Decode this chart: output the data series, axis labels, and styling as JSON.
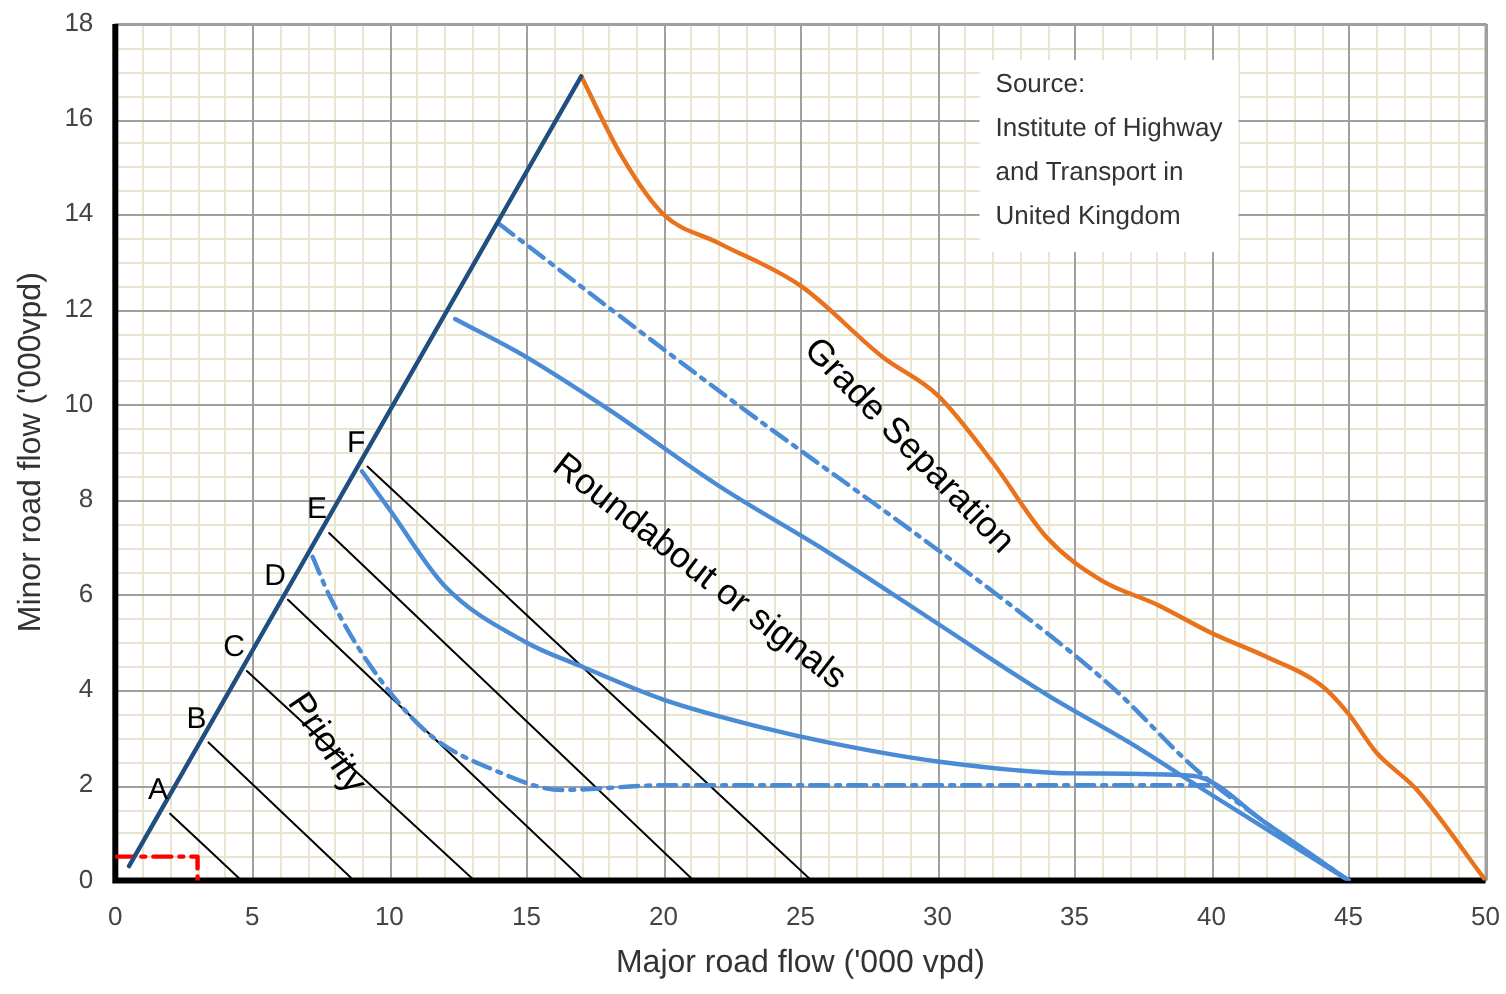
{
  "chart_data": {
    "type": "line",
    "xlabel": "Major road flow ('000 vpd)",
    "ylabel": "Minor road flow ('000vpd)",
    "xlim": [
      0,
      50
    ],
    "xticks": [
      0,
      5,
      10,
      15,
      20,
      25,
      30,
      35,
      40,
      45,
      50
    ],
    "ylim": [
      0,
      18
    ],
    "yticks": [
      0,
      2,
      4,
      6,
      8,
      10,
      12,
      14,
      16,
      18
    ],
    "grid": true,
    "legend": false,
    "marker": "none",
    "series": [
      {
        "color": "#1f4e7f",
        "x": [
          0.5,
          17
        ],
        "values": [
          0.3,
          16.9
        ]
      },
      {
        "color": "#e8731c",
        "x": [
          17,
          18.5,
          20,
          22,
          25,
          28,
          30,
          32,
          34,
          36,
          38,
          40,
          42,
          44,
          45,
          46,
          47.5,
          50
        ],
        "values": [
          16.9,
          15.2,
          14,
          13.4,
          12.5,
          11,
          10.2,
          8.8,
          7.2,
          6.3,
          5.8,
          5.2,
          4.7,
          4.1,
          3.5,
          2.7,
          1.9,
          0
        ]
      },
      {
        "color": "#4a8bd6",
        "line_style": "dashed",
        "x": [
          14,
          22,
          31.5,
          36.3,
          39.5,
          42,
          45
        ],
        "values": [
          13.8,
          10.3,
          6.3,
          4.1,
          2.3,
          1.2,
          0
        ]
      },
      {
        "color": "#4a8bd6",
        "x": [
          12.4,
          15,
          18,
          22,
          26,
          30,
          34,
          37,
          40,
          42.5,
          45
        ],
        "values": [
          11.8,
          11,
          9.9,
          8.3,
          6.9,
          5.4,
          3.9,
          2.9,
          1.8,
          0.9,
          0
        ]
      },
      {
        "color": "#4a8bd6",
        "x": [
          9,
          10,
          12,
          15,
          17,
          20,
          23,
          26,
          30,
          35,
          39.3,
          42,
          45
        ],
        "values": [
          8.6,
          7.8,
          6.2,
          5,
          4.5,
          3.8,
          3.3,
          2.9,
          2.5,
          2.25,
          2.2,
          1.2,
          0
        ]
      },
      {
        "color": "#4a8bd6",
        "line_style": "dashed",
        "x": [
          7.2,
          7.8,
          9.2,
          11.4,
          13.9,
          16.3,
          20,
          40
        ],
        "values": [
          6.8,
          6,
          4.6,
          3.1,
          2.3,
          1.9,
          2,
          2
        ]
      },
      {
        "color": "#000000",
        "x": [
          2,
          4.6
        ],
        "values": [
          1.4,
          0
        ]
      },
      {
        "color": "#000000",
        "x": [
          3.4,
          8.7
        ],
        "values": [
          2.9,
          0
        ]
      },
      {
        "color": "#000000",
        "x": [
          4.8,
          13.1
        ],
        "values": [
          4.4,
          0
        ]
      },
      {
        "color": "#000000",
        "x": [
          6.3,
          17.1
        ],
        "values": [
          5.9,
          0
        ]
      },
      {
        "color": "#000000",
        "x": [
          7.8,
          21.1
        ],
        "values": [
          7.3,
          0
        ]
      },
      {
        "color": "#000000",
        "x": [
          9.2,
          25.4
        ],
        "values": [
          8.7,
          0
        ]
      },
      {
        "color": "#ff0000",
        "line_style": "dashed",
        "x": [
          0,
          3,
          3
        ],
        "values": [
          0.5,
          0.5,
          0
        ]
      }
    ],
    "annotations": [
      "Source:\nInstitute of Highway\nand Transport in\nUnited Kingdom",
      "Priority",
      "Roundabout or signals",
      "Grade Separation",
      {
        "text": "A",
        "x": 2,
        "y": 1.4
      },
      {
        "text": "B",
        "x": 3.4,
        "y": 2.9
      },
      {
        "text": "C",
        "x": 4.8,
        "y": 4.4
      },
      {
        "text": "D",
        "x": 6.3,
        "y": 5.9
      },
      {
        "text": "E",
        "x": 7.8,
        "y": 7.3
      },
      {
        "text": "F",
        "x": 9.2,
        "y": 8.7
      }
    ]
  }
}
